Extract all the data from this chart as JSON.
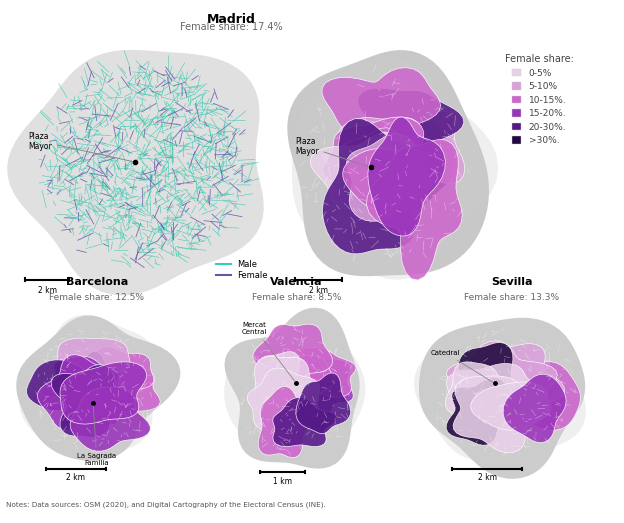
{
  "title_madrid": "Madrid",
  "subtitle_madrid": "Female share: 17.4%",
  "title_barcelona": "Barcelona",
  "subtitle_barcelona": "Female share: 12.5%",
  "title_valencia": "Valencia",
  "subtitle_valencia": "Female share: 8.5%",
  "title_sevilla": "Sevilla",
  "subtitle_sevilla": "Female share: 13.3%",
  "legend_title": "Female share:",
  "legend_labels": [
    "0-5%",
    "5-10%",
    "10-15%.",
    "15-20%.",
    "20-30%.",
    ">30%."
  ],
  "legend_colors": [
    "#e8d0e8",
    "#d9a0d9",
    "#cc66cc",
    "#9933bb",
    "#551888",
    "#200840"
  ],
  "male_color": "#3ec9b0",
  "female_color": "#6655aa",
  "bg_street_color": "#d8d8d8",
  "background_color": "#ffffff",
  "note_text": "Notes: Data sources: OSM (2020), and Digital Cartography of the Electoral Census (INE).",
  "scale_bars": {
    "madrid_street": "2 km",
    "madrid_choropleth": "2 km",
    "barcelona": "2 km",
    "valencia": "1 km",
    "sevilla": "2 km"
  }
}
